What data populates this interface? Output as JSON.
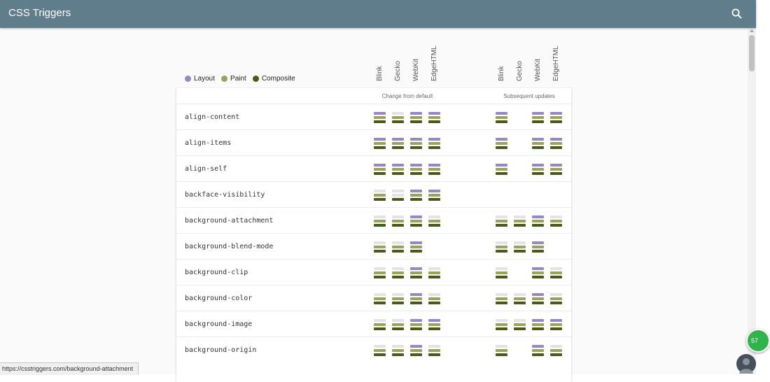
{
  "app": {
    "title": "CSS Triggers"
  },
  "legend": {
    "items": [
      {
        "key": "layout",
        "label": "Layout",
        "color": "#9688c5"
      },
      {
        "key": "paint",
        "label": "Paint",
        "color": "#9aa25c"
      },
      {
        "key": "composite",
        "label": "Composite",
        "color": "#4a5a1a"
      }
    ],
    "inactive_color": "#e3e3e6"
  },
  "engines": [
    "Blink",
    "Gecko",
    "WebKit",
    "EdgeHTML"
  ],
  "groups": [
    {
      "key": "change",
      "label": "Change from default"
    },
    {
      "key": "subsequent",
      "label": "Subsequent updates"
    }
  ],
  "properties": [
    {
      "name": "align-content",
      "change": [
        "LPC",
        "PC",
        "LPC",
        "LPC"
      ],
      "subsequent": [
        "LPC",
        "",
        "LPC",
        "LPC"
      ]
    },
    {
      "name": "align-items",
      "change": [
        "LPC",
        "LPC",
        "LPC",
        "LPC"
      ],
      "subsequent": [
        "LPC",
        "",
        "LPC",
        "LPC"
      ]
    },
    {
      "name": "align-self",
      "change": [
        "LPC",
        "LPC",
        "LPC",
        "LPC"
      ],
      "subsequent": [
        "LPC",
        "",
        "LPC",
        "LPC"
      ]
    },
    {
      "name": "backface-visibility",
      "change": [
        "PC",
        "C",
        "LPC",
        "LPC"
      ],
      "subsequent": [
        "",
        "",
        "",
        ""
      ]
    },
    {
      "name": "background-attachment",
      "change": [
        "PC",
        "PC",
        "LPC",
        "PC"
      ],
      "subsequent": [
        "PC",
        "PC",
        "LPC",
        "PC"
      ]
    },
    {
      "name": "background-blend-mode",
      "change": [
        "PC",
        "PC",
        "LPC",
        ""
      ],
      "subsequent": [
        "PC",
        "PC",
        "LPC",
        ""
      ]
    },
    {
      "name": "background-clip",
      "change": [
        "PC",
        "PC",
        "LPC",
        "PC"
      ],
      "subsequent": [
        "PC",
        "",
        "LPC",
        "PC"
      ]
    },
    {
      "name": "background-color",
      "change": [
        "PC",
        "PC",
        "LPC",
        "PC"
      ],
      "subsequent": [
        "PC",
        "PC",
        "LPC",
        "PC"
      ]
    },
    {
      "name": "background-image",
      "change": [
        "PC",
        "PC",
        "LPC",
        "LPC"
      ],
      "subsequent": [
        "PC",
        "PC",
        "LPC",
        "LPC"
      ]
    },
    {
      "name": "background-origin",
      "change": [
        "PC",
        "PC",
        "LPC",
        "PC"
      ],
      "subsequent": [
        "PC",
        "",
        "LPC",
        "PC"
      ]
    }
  ],
  "status_bar": {
    "url": "https://csstriggers.com/background-attachment"
  },
  "fab": {
    "label": "57"
  }
}
